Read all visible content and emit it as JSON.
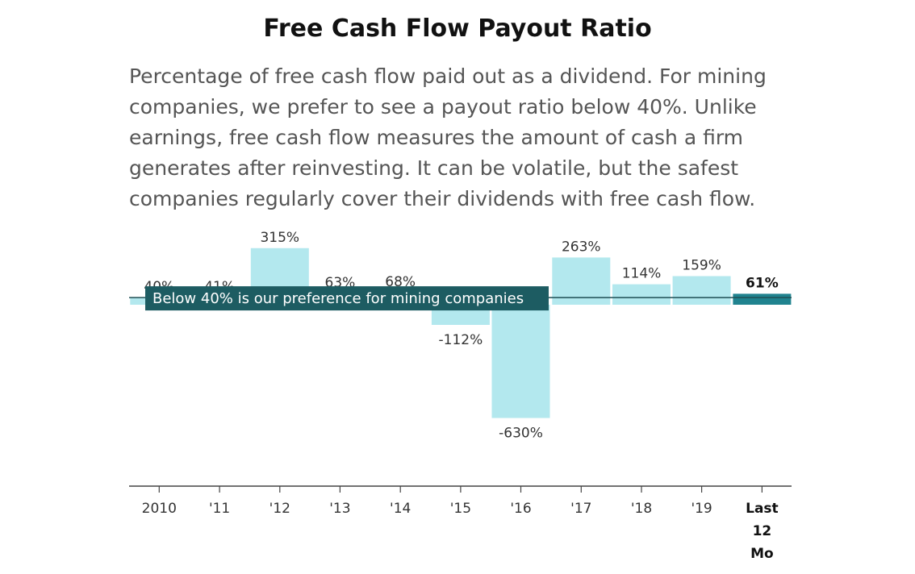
{
  "header": {
    "title": "Free Cash Flow Payout Ratio",
    "subtitle": "Percentage of free cash flow paid out as a dividend. For mining companies, we prefer to see a payout ratio below 40%. Unlike earnings, free cash flow measures the amount of cash a firm generates after reinvesting. It can be volatile, but the safest companies regularly cover their dividends with free cash flow."
  },
  "colors": {
    "bar": "#b3e8ee",
    "highlight_bar": "#20838f",
    "reference_line": "#1f4f55",
    "reference_label_bg": "#1d5c62",
    "axis": "#444444"
  },
  "chart_data": {
    "type": "bar",
    "title": "Free Cash Flow Payout Ratio",
    "categories": [
      "2010",
      "'11",
      "'12",
      "'13",
      "'14",
      "'15",
      "'16",
      "'17",
      "'18",
      "'19",
      "Last 12 Mo"
    ],
    "values": [
      40,
      41,
      315,
      63,
      68,
      -112,
      -630,
      263,
      114,
      159,
      61
    ],
    "value_labels": [
      "40%",
      "41%",
      "315%",
      "63%",
      "68%",
      "-112%",
      "-630%",
      "263%",
      "114%",
      "159%",
      "61%"
    ],
    "highlight_index": 10,
    "reference_line": {
      "value": 40,
      "label": "Below 40% is our preference for mining companies"
    },
    "ylim": [
      -900,
      315
    ],
    "grid": false,
    "legend": "none"
  }
}
